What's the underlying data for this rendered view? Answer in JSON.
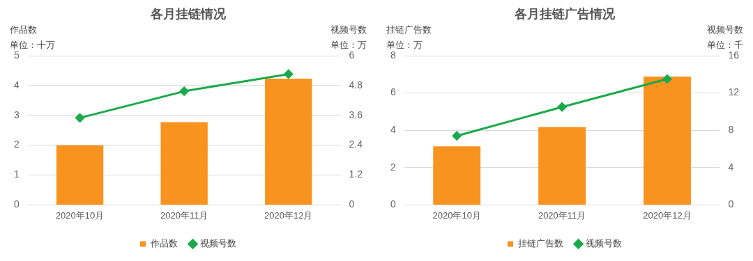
{
  "chart_data": [
    {
      "type": "bar",
      "title": "各月挂链情况",
      "ylabel": "作品数",
      "y2label": "视频号数",
      "annotations": [
        "单位：十万",
        "单位：万"
      ],
      "categories": [
        "2020年10月",
        "2020年11月",
        "2020年12月"
      ],
      "series": [
        {
          "name": "作品数",
          "color": "#f7931e",
          "values": [
            2.0,
            2.77,
            4.23
          ]
        },
        {
          "name": "视频号数",
          "type": "line",
          "axis": "y2",
          "color": "#1aaa4b",
          "values": [
            3.5,
            4.57,
            5.26
          ]
        }
      ],
      "ylim": [
        0,
        5
      ],
      "yticks": [
        0,
        1,
        2,
        3,
        4,
        5
      ],
      "y2lim": [
        0,
        6
      ],
      "y2ticks": [
        0,
        1.2,
        2.4,
        3.6,
        4.8,
        6
      ],
      "grid": "y",
      "legend": "bottom",
      "marker": "diamond"
    },
    {
      "type": "bar",
      "title": "各月挂链广告情况",
      "ylabel": "挂链广告数",
      "y2label": "视频号数",
      "annotations": [
        "单位：万",
        "单位：千"
      ],
      "categories": [
        "2020年10月",
        "2020年11月",
        "2020年12月"
      ],
      "series": [
        {
          "name": "挂链广告数",
          "color": "#f7931e",
          "values": [
            3.14,
            4.18,
            6.88
          ]
        },
        {
          "name": "视频号数",
          "type": "line",
          "axis": "y2",
          "color": "#1aaa4b",
          "values": [
            7.4,
            10.5,
            13.5
          ]
        }
      ],
      "ylim": [
        0,
        8
      ],
      "yticks": [
        0,
        2,
        4,
        6,
        8
      ],
      "y2lim": [
        0,
        16
      ],
      "y2ticks": [
        0,
        4,
        8,
        12,
        16
      ],
      "grid": "y",
      "legend": "bottom",
      "marker": "diamond"
    }
  ]
}
